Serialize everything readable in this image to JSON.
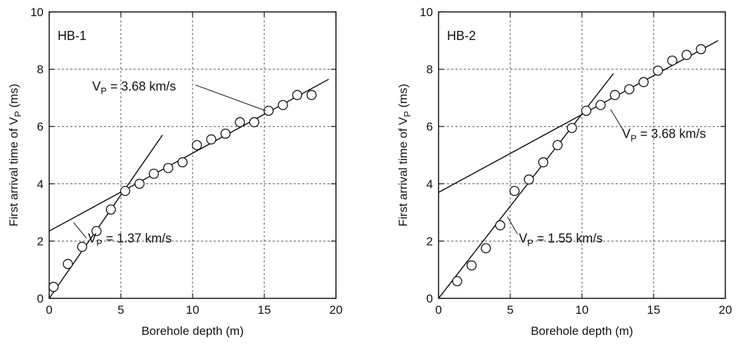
{
  "chart_data": [
    {
      "type": "scatter",
      "panel_label": "HB-1",
      "xlabel": "Borehole depth (m)",
      "ylabel": "First arrival time of V",
      "ylabel_sub": "P",
      "ylabel_unit": " (ms)",
      "xlim": [
        0,
        20
      ],
      "ylim": [
        0,
        10
      ],
      "xticks": [
        0,
        5,
        10,
        15,
        20
      ],
      "yticks": [
        0,
        2,
        4,
        6,
        8,
        10
      ],
      "grid": true,
      "series": [
        {
          "values_x": [
            0.3,
            1.3,
            2.3,
            3.3,
            4.3,
            5.3,
            6.3,
            7.3,
            8.3,
            9.3,
            10.3,
            11.3,
            12.3,
            13.3,
            14.3,
            15.3,
            16.3,
            17.3,
            18.3
          ],
          "values_y": [
            0.4,
            1.2,
            1.8,
            2.35,
            3.1,
            3.75,
            4.0,
            4.35,
            4.55,
            4.75,
            5.35,
            5.55,
            5.75,
            6.15,
            6.15,
            6.55,
            6.75,
            7.1,
            7.1
          ]
        }
      ],
      "fit_lines": [
        {
          "x": [
            0,
            7.9
          ],
          "y": [
            0,
            5.7
          ]
        },
        {
          "x": [
            0,
            19.5
          ],
          "y": [
            2.35,
            7.65
          ]
        }
      ],
      "annotations": [
        {
          "V": "V",
          "sub": "P",
          "rest": " = 3.68 km/s",
          "x": 3.0,
          "y": 7.25,
          "leader_from": [
            10.2,
            7.45
          ],
          "leader_to": [
            15.1,
            6.55
          ]
        },
        {
          "V": "V",
          "sub": "P",
          "rest": " = 1.37 km/s",
          "x": 2.7,
          "y": 1.95,
          "leader_from": [
            2.6,
            2.1
          ],
          "leader_to": [
            1.7,
            2.65
          ]
        }
      ]
    },
    {
      "type": "scatter",
      "panel_label": "HB-2",
      "xlabel": "Borehole depth (m)",
      "ylabel": "First arrival time of V",
      "ylabel_sub": "P",
      "ylabel_unit": " (ms)",
      "xlim": [
        0,
        20
      ],
      "ylim": [
        0,
        10
      ],
      "xticks": [
        0,
        5,
        10,
        15,
        20
      ],
      "yticks": [
        0,
        2,
        4,
        6,
        8,
        10
      ],
      "grid": true,
      "series": [
        {
          "values_x": [
            1.3,
            2.3,
            3.3,
            4.3,
            5.3,
            6.3,
            7.3,
            8.3,
            9.3,
            10.3,
            11.3,
            12.3,
            13.3,
            14.3,
            15.3,
            16.3,
            17.3,
            18.3
          ],
          "values_y": [
            0.6,
            1.15,
            1.75,
            2.55,
            3.75,
            4.15,
            4.75,
            5.35,
            5.95,
            6.55,
            6.75,
            7.1,
            7.3,
            7.55,
            7.95,
            8.3,
            8.5,
            8.7
          ]
        }
      ],
      "fit_lines": [
        {
          "x": [
            0,
            12.2
          ],
          "y": [
            0,
            7.85
          ]
        },
        {
          "x": [
            0,
            19.5
          ],
          "y": [
            3.7,
            9.0
          ]
        }
      ],
      "annotations": [
        {
          "V": "V",
          "sub": "P",
          "rest": " = 3.68 km/s",
          "x": 12.8,
          "y": 5.6,
          "leader_from": [
            12.9,
            5.85
          ],
          "leader_to": [
            12.0,
            6.6
          ]
        },
        {
          "V": "V",
          "sub": "P",
          "rest": " = 1.55 km/s",
          "x": 5.6,
          "y": 1.95,
          "leader_from": [
            5.5,
            2.25
          ],
          "leader_to": [
            4.8,
            2.85
          ]
        }
      ]
    }
  ]
}
